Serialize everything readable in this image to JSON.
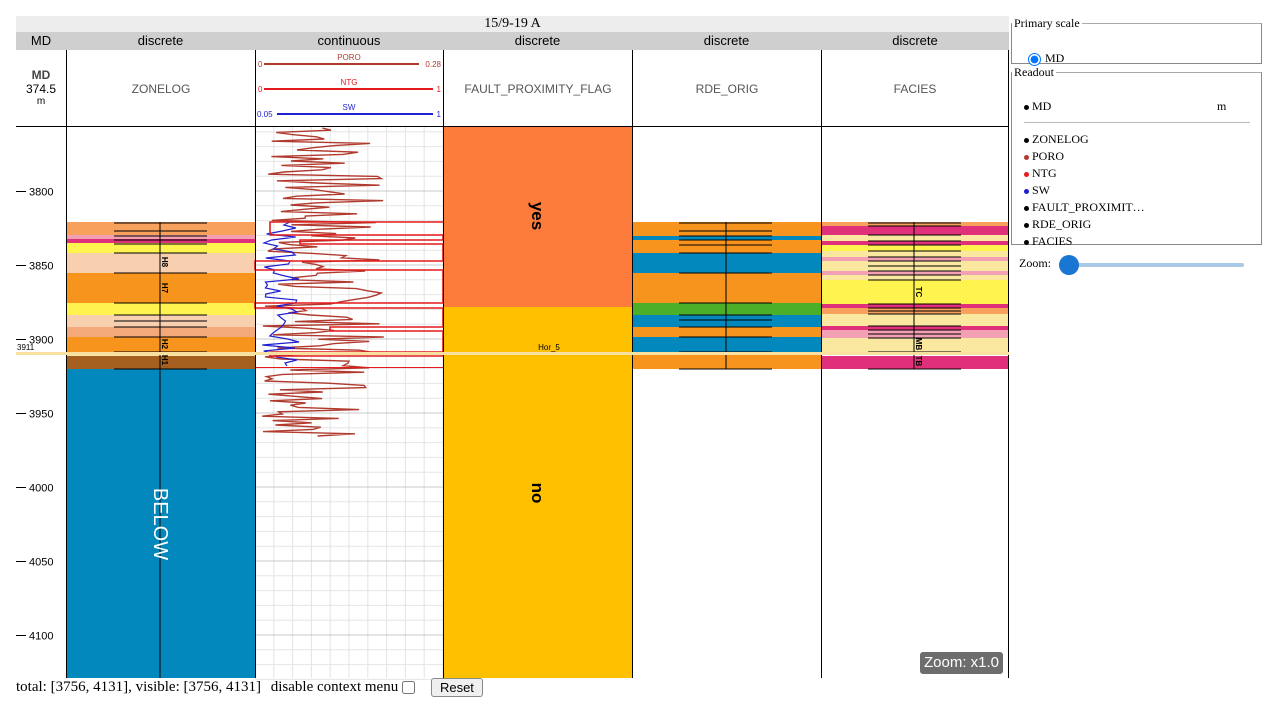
{
  "well": {
    "title": "15/9-19 A"
  },
  "scale_track": {
    "header": "MD",
    "name": "MD",
    "value": "374.5",
    "unit": "m"
  },
  "tracks": [
    {
      "header": "discrete",
      "name": "ZONELOG"
    },
    {
      "header": "continuous",
      "name": ""
    },
    {
      "header": "discrete",
      "name": "FAULT_PROXIMITY_FLAG"
    },
    {
      "header": "discrete",
      "name": "RDE_ORIG"
    },
    {
      "header": "discrete",
      "name": "FACIES"
    }
  ],
  "continuous_logs": [
    {
      "name": "PORO",
      "min": "0",
      "max": "0.28",
      "color": "#b03a2e"
    },
    {
      "name": "NTG",
      "min": "0",
      "max": "1",
      "color": "#e41a1c"
    },
    {
      "name": "SW",
      "min": "0.05",
      "max": "1",
      "color": "#1f1fd0"
    }
  ],
  "depth_axis": {
    "ticks": [
      "3800",
      "3850",
      "3900",
      "3950",
      "4000",
      "4050",
      "4100"
    ]
  },
  "zonelog": {
    "big_label": "BELOW",
    "zones": [
      "H8",
      "H7",
      "H2",
      "H1"
    ]
  },
  "fault_flag": {
    "values": [
      "yes",
      "no"
    ]
  },
  "facies_labels": [
    "TC",
    "MB",
    "TB"
  ],
  "horizon": {
    "name": "Hor_5",
    "depth": "3911"
  },
  "panel": {
    "primary_scale": {
      "legend": "Primary scale",
      "option": "MD",
      "selected": true
    },
    "readout": {
      "legend": "Readout",
      "scale": {
        "name": "MD",
        "unit": "m",
        "color": "#000000"
      },
      "rows": [
        {
          "name": "ZONELOG",
          "color": "#000000"
        },
        {
          "name": "PORO",
          "color": "#b03a2e"
        },
        {
          "name": "NTG",
          "color": "#e41a1c"
        },
        {
          "name": "SW",
          "color": "#1f1fd0"
        },
        {
          "name": "FAULT_PROXIMIT…",
          "color": "#000000"
        },
        {
          "name": "RDE_ORIG",
          "color": "#000000"
        },
        {
          "name": "FACIES",
          "color": "#000000"
        }
      ]
    },
    "zoom": {
      "label": "Zoom:",
      "level": 0
    }
  },
  "zoom_badge": "Zoom: x1.0",
  "status": {
    "range_text": "total: [3756, 4131], visible: [3756, 4131]",
    "context_menu_label": "disable context menu",
    "context_menu_disabled": false,
    "reset_label": "Reset"
  }
}
